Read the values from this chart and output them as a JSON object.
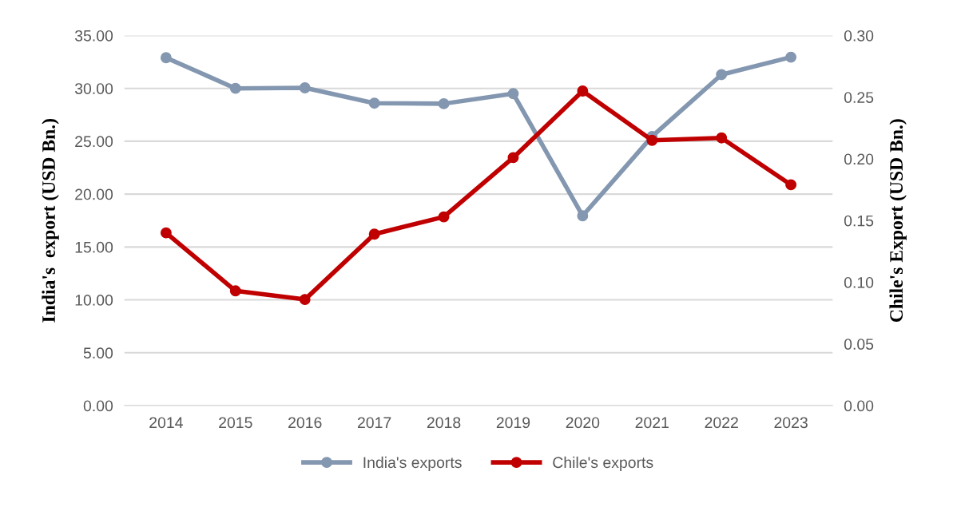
{
  "chart_data": {
    "type": "line",
    "categories": [
      "2014",
      "2015",
      "2016",
      "2017",
      "2018",
      "2019",
      "2020",
      "2021",
      "2022",
      "2023"
    ],
    "ylabel": "India's  export (USD Bn.)",
    "y2label": "Chile's Export (USD Bn.)",
    "ylim": [
      0,
      35
    ],
    "yticks": [
      {
        "value": 0,
        "label": "0.00"
      },
      {
        "value": 5,
        "label": "5.00"
      },
      {
        "value": 10,
        "label": "10.00"
      },
      {
        "value": 15,
        "label": "15.00"
      },
      {
        "value": 20,
        "label": "20.00"
      },
      {
        "value": 25,
        "label": "25.00"
      },
      {
        "value": 30,
        "label": "30.00"
      },
      {
        "value": 35,
        "label": "35.00"
      }
    ],
    "y2lim": [
      0,
      0.3
    ],
    "y2ticks": [
      {
        "value": 0,
        "label": "0.00"
      },
      {
        "value": 0.05,
        "label": "0.05"
      },
      {
        "value": 0.1,
        "label": "0.10"
      },
      {
        "value": 0.15,
        "label": "0.15"
      },
      {
        "value": 0.2,
        "label": "0.20"
      },
      {
        "value": 0.25,
        "label": "0.25"
      },
      {
        "value": 0.3,
        "label": "0.30"
      }
    ],
    "series": [
      {
        "name": "India's exports",
        "color": "#8497b0",
        "values": [
          32.9,
          30.0,
          30.05,
          28.6,
          28.55,
          29.5,
          17.95,
          25.45,
          31.3,
          32.95
        ]
      },
      {
        "name": "Chile's exports",
        "color": "#c00000",
        "axis": "y2",
        "values": [
          0.14,
          0.093,
          0.086,
          0.139,
          0.153,
          0.201,
          0.255,
          0.215,
          0.217,
          0.179
        ]
      }
    ],
    "grid": "y",
    "legend": "bottom",
    "marker": "circle",
    "line_style": "solid"
  }
}
